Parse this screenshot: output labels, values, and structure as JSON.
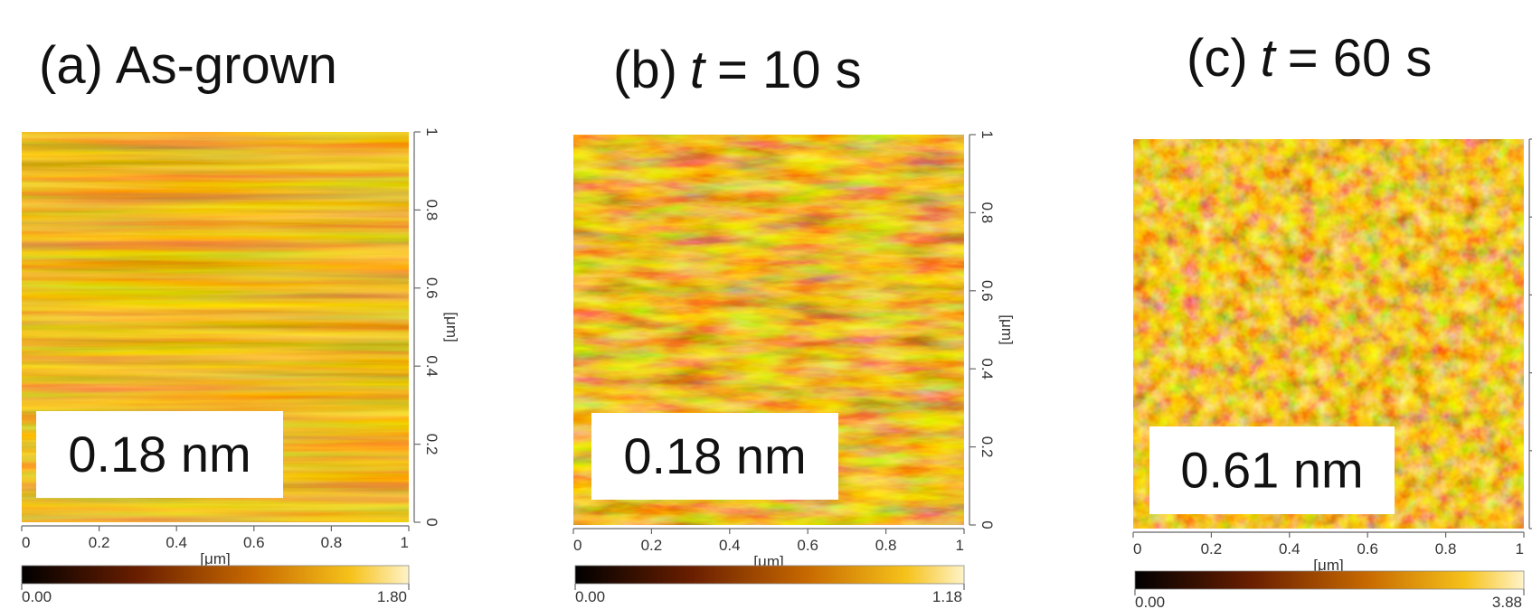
{
  "panels": [
    {
      "label": "(a)",
      "title": "As-grown",
      "roughness": "0.18 nm",
      "x_ticks": [
        "0",
        "0.2",
        "0.4",
        "0.6",
        "0.8",
        "1"
      ],
      "x_unit": "[μm]",
      "y_ticks": [
        "0",
        "0.2",
        "0.4",
        "0.6",
        "0.8",
        "1"
      ],
      "y_unit": "[μm]",
      "colorbar": {
        "min": "0.00",
        "max": "1.80"
      }
    },
    {
      "label": "(b)",
      "title_var": "t",
      "title": "= 10 s",
      "roughness": "0.18 nm",
      "x_ticks": [
        "0",
        "0.2",
        "0.4",
        "0.6",
        "0.8",
        "1"
      ],
      "x_unit": "[μm]",
      "y_ticks": [
        "0",
        "0.2",
        "0.4",
        "0.6",
        "0.8",
        "1"
      ],
      "y_unit": "[μm]",
      "colorbar": {
        "min": "0.00",
        "max": "1.18"
      }
    },
    {
      "label": "(c)",
      "title_var": "t",
      "title": "= 60 s",
      "roughness": "0.61 nm",
      "x_ticks": [
        "0",
        "0.2",
        "0.4",
        "0.6",
        "0.8",
        "1"
      ],
      "x_unit": "[μm]",
      "colorbar": {
        "min": "0.00",
        "max": "3.88"
      }
    }
  ]
}
